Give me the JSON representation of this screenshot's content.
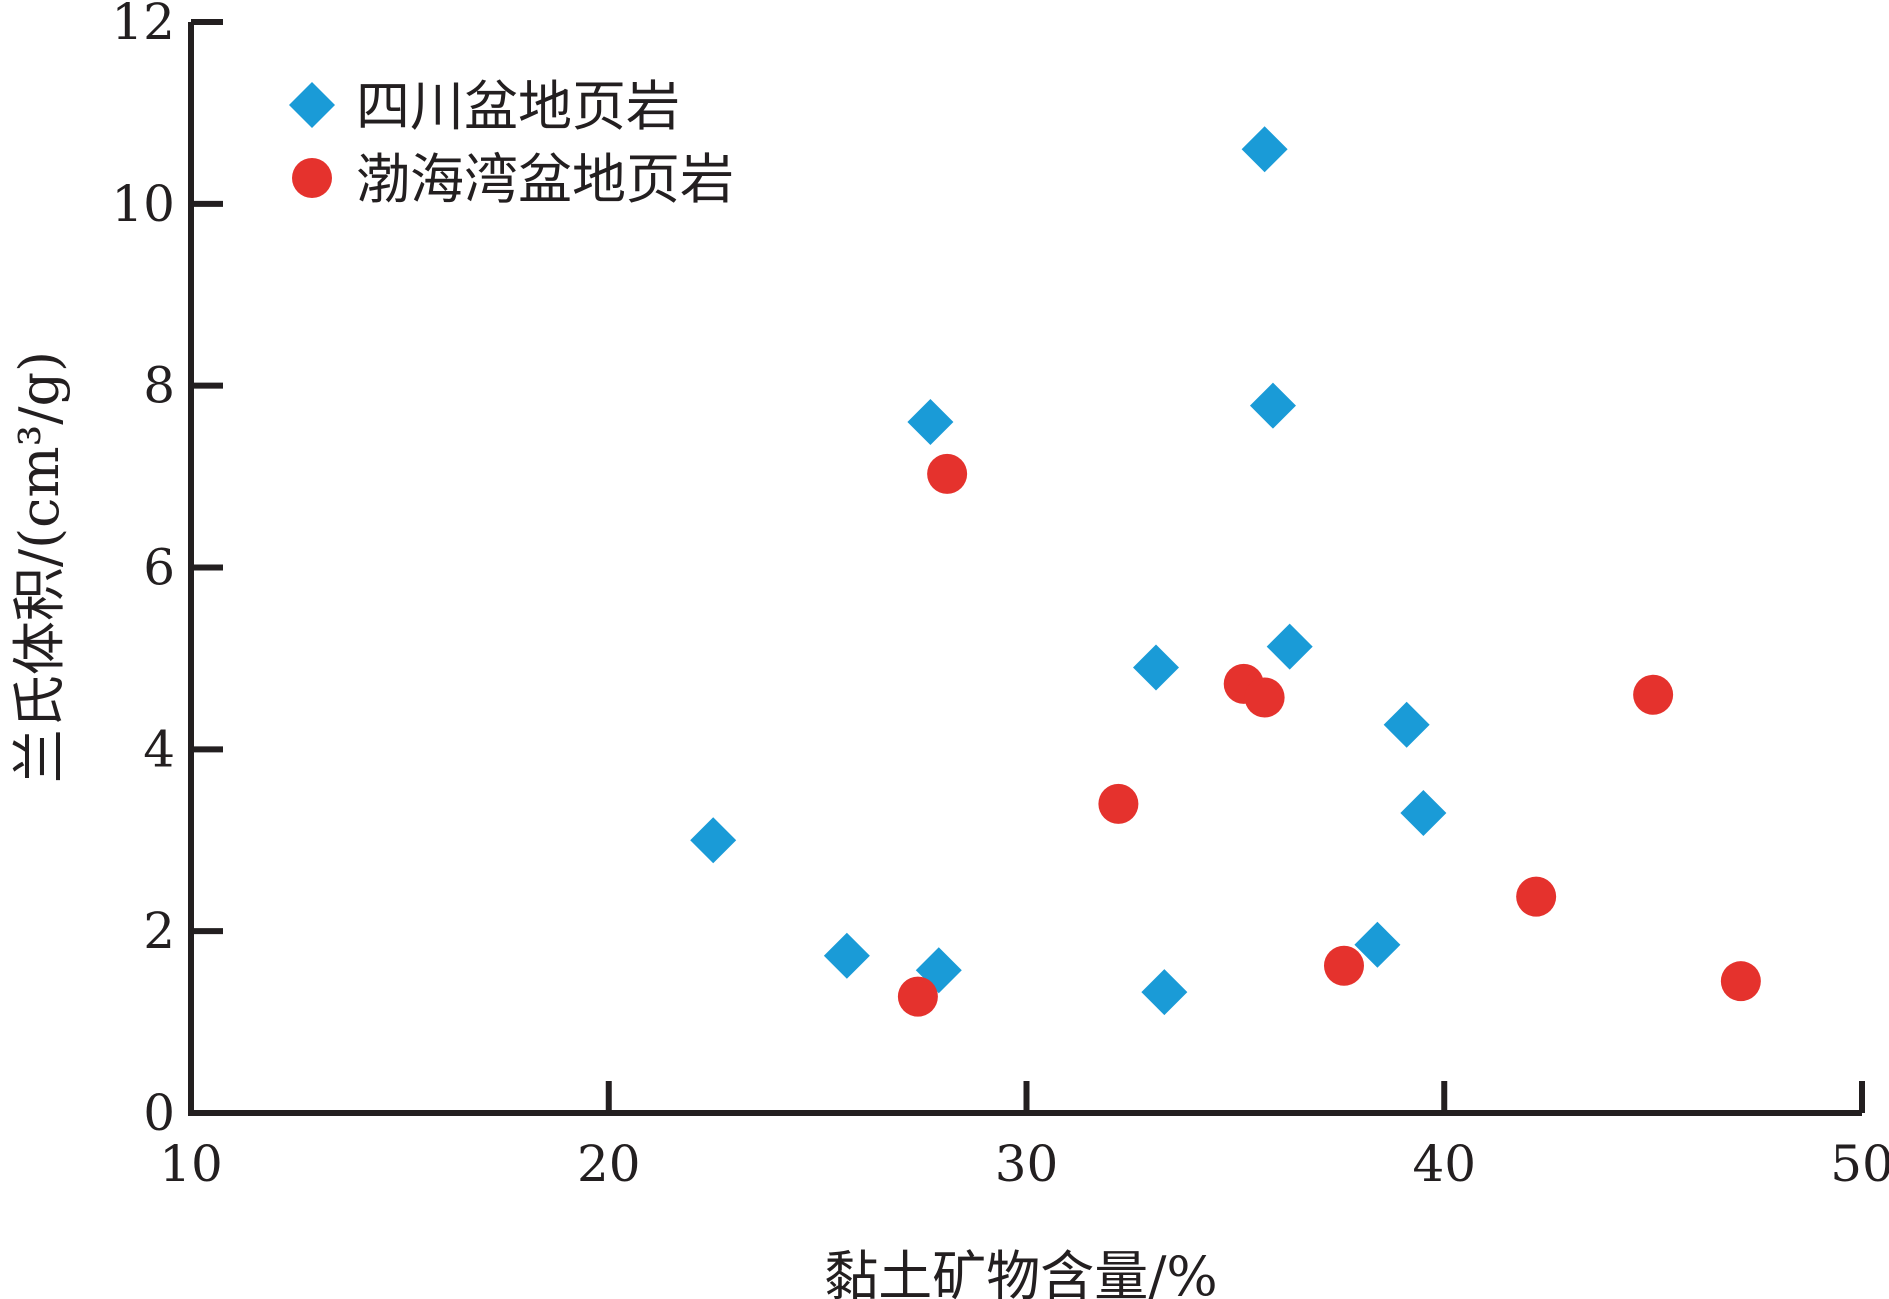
{
  "chart_data": {
    "type": "scatter",
    "title": "",
    "xlabel": "黏土矿物含量/%",
    "ylabel": "兰氏体积/(cm³/g)",
    "xlim": [
      10,
      50
    ],
    "ylim": [
      0,
      12
    ],
    "x_ticks": [
      10,
      20,
      30,
      40,
      50
    ],
    "y_ticks": [
      0,
      2,
      4,
      6,
      8,
      10,
      12
    ],
    "x_tick_labels": [
      "10",
      "20",
      "30",
      "40",
      "50"
    ],
    "y_tick_labels": [
      "0",
      "2",
      "4",
      "6",
      "8",
      "10",
      "12"
    ],
    "grid": false,
    "legend_position": "top-left",
    "series": [
      {
        "name": "四川盆地页岩",
        "marker": "diamond",
        "color": "#1a9bd7",
        "points": [
          {
            "x": 22.5,
            "y": 3.0
          },
          {
            "x": 25.7,
            "y": 1.73
          },
          {
            "x": 27.7,
            "y": 7.6
          },
          {
            "x": 27.9,
            "y": 1.57
          },
          {
            "x": 33.1,
            "y": 4.9
          },
          {
            "x": 33.3,
            "y": 1.33
          },
          {
            "x": 35.7,
            "y": 10.6
          },
          {
            "x": 35.9,
            "y": 7.78
          },
          {
            "x": 36.3,
            "y": 5.13
          },
          {
            "x": 38.4,
            "y": 1.85
          },
          {
            "x": 39.1,
            "y": 4.27
          },
          {
            "x": 39.5,
            "y": 3.3
          }
        ]
      },
      {
        "name": "渤海湾盆地页岩",
        "marker": "circle",
        "color": "#e5322d",
        "points": [
          {
            "x": 27.4,
            "y": 1.28
          },
          {
            "x": 28.1,
            "y": 7.03
          },
          {
            "x": 32.2,
            "y": 3.4
          },
          {
            "x": 35.2,
            "y": 4.72
          },
          {
            "x": 35.7,
            "y": 4.57
          },
          {
            "x": 37.6,
            "y": 1.62
          },
          {
            "x": 42.2,
            "y": 2.38
          },
          {
            "x": 45.0,
            "y": 4.6
          },
          {
            "x": 47.1,
            "y": 1.45
          }
        ]
      }
    ]
  }
}
